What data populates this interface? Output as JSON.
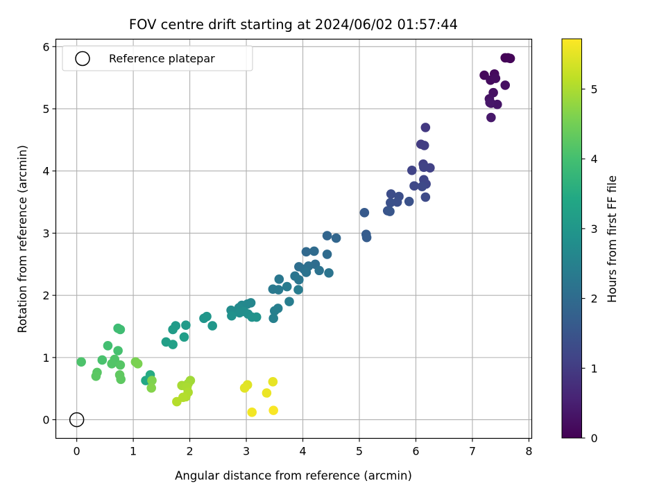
{
  "chart_data": {
    "type": "scatter",
    "title": "FOV centre drift starting at 2024/06/02 01:57:44",
    "xlabel": "Angular distance from reference (arcmin)",
    "ylabel": "Rotation from reference (arcmin)",
    "xlim": [
      -0.37,
      8.05
    ],
    "ylim": [
      -0.3,
      6.12
    ],
    "xticks": [
      "0",
      "1",
      "2",
      "3",
      "4",
      "5",
      "6",
      "7",
      "8"
    ],
    "yticks": [
      "0",
      "1",
      "2",
      "3",
      "4",
      "5",
      "6"
    ],
    "grid": true,
    "legend": {
      "position": "top-left",
      "entries": [
        "Reference platepar"
      ]
    },
    "reference_point": {
      "x": 0,
      "y": 0
    },
    "colorbar": {
      "label": "Hours from first FF file",
      "colormap": "viridis",
      "range": [
        0,
        5.72
      ],
      "ticks": [
        "0",
        "1",
        "2",
        "3",
        "4",
        "5"
      ]
    },
    "points": [
      {
        "x": 7.63,
        "y": 5.82,
        "t": 0.03
      },
      {
        "x": 7.58,
        "y": 5.82,
        "t": 0.05
      },
      {
        "x": 7.67,
        "y": 5.81,
        "t": 0.07
      },
      {
        "x": 7.21,
        "y": 5.54,
        "t": 0.12
      },
      {
        "x": 7.39,
        "y": 5.56,
        "t": 0.14
      },
      {
        "x": 7.32,
        "y": 5.46,
        "t": 0.17
      },
      {
        "x": 7.41,
        "y": 5.49,
        "t": 0.19
      },
      {
        "x": 7.58,
        "y": 5.38,
        "t": 0.22
      },
      {
        "x": 7.37,
        "y": 5.26,
        "t": 0.25
      },
      {
        "x": 7.3,
        "y": 5.16,
        "t": 0.28
      },
      {
        "x": 7.33,
        "y": 5.09,
        "t": 0.3
      },
      {
        "x": 7.44,
        "y": 5.07,
        "t": 0.33
      },
      {
        "x": 7.31,
        "y": 5.1,
        "t": 0.36
      },
      {
        "x": 7.33,
        "y": 4.86,
        "t": 0.38
      },
      {
        "x": 6.17,
        "y": 4.7,
        "t": 0.95
      },
      {
        "x": 6.09,
        "y": 4.43,
        "t": 1.0
      },
      {
        "x": 6.15,
        "y": 4.41,
        "t": 1.03
      },
      {
        "x": 6.13,
        "y": 4.11,
        "t": 1.07
      },
      {
        "x": 6.25,
        "y": 4.05,
        "t": 1.1
      },
      {
        "x": 6.14,
        "y": 4.06,
        "t": 1.12
      },
      {
        "x": 5.93,
        "y": 4.01,
        "t": 1.15
      },
      {
        "x": 6.14,
        "y": 3.86,
        "t": 1.18
      },
      {
        "x": 6.18,
        "y": 3.79,
        "t": 1.21
      },
      {
        "x": 5.97,
        "y": 3.76,
        "t": 1.24
      },
      {
        "x": 6.11,
        "y": 3.75,
        "t": 1.27
      },
      {
        "x": 6.17,
        "y": 3.58,
        "t": 1.3
      },
      {
        "x": 5.56,
        "y": 3.63,
        "t": 1.33
      },
      {
        "x": 5.7,
        "y": 3.59,
        "t": 1.36
      },
      {
        "x": 5.67,
        "y": 3.5,
        "t": 1.39
      },
      {
        "x": 5.55,
        "y": 3.49,
        "t": 1.42
      },
      {
        "x": 5.88,
        "y": 3.51,
        "t": 1.45
      },
      {
        "x": 5.5,
        "y": 3.36,
        "t": 1.48
      },
      {
        "x": 5.54,
        "y": 3.35,
        "t": 1.52
      },
      {
        "x": 5.09,
        "y": 3.33,
        "t": 1.6
      },
      {
        "x": 5.12,
        "y": 2.98,
        "t": 1.65
      },
      {
        "x": 5.13,
        "y": 2.93,
        "t": 1.68
      },
      {
        "x": 4.43,
        "y": 2.96,
        "t": 1.85
      },
      {
        "x": 4.59,
        "y": 2.92,
        "t": 1.88
      },
      {
        "x": 4.06,
        "y": 2.7,
        "t": 1.95
      },
      {
        "x": 4.2,
        "y": 2.71,
        "t": 1.98
      },
      {
        "x": 4.43,
        "y": 2.66,
        "t": 2.0
      },
      {
        "x": 4.22,
        "y": 2.5,
        "t": 2.03
      },
      {
        "x": 3.93,
        "y": 2.46,
        "t": 2.06
      },
      {
        "x": 4.1,
        "y": 2.47,
        "t": 2.08
      },
      {
        "x": 4.02,
        "y": 2.42,
        "t": 2.11
      },
      {
        "x": 4.29,
        "y": 2.4,
        "t": 2.14
      },
      {
        "x": 4.06,
        "y": 2.37,
        "t": 2.17
      },
      {
        "x": 4.46,
        "y": 2.36,
        "t": 2.2
      },
      {
        "x": 3.86,
        "y": 2.31,
        "t": 2.22
      },
      {
        "x": 3.93,
        "y": 2.25,
        "t": 2.25
      },
      {
        "x": 3.58,
        "y": 2.26,
        "t": 2.27
      },
      {
        "x": 3.47,
        "y": 2.1,
        "t": 2.3
      },
      {
        "x": 3.57,
        "y": 2.09,
        "t": 2.32
      },
      {
        "x": 3.72,
        "y": 2.14,
        "t": 2.35
      },
      {
        "x": 3.92,
        "y": 2.09,
        "t": 2.37
      },
      {
        "x": 3.76,
        "y": 1.9,
        "t": 2.4
      },
      {
        "x": 3.56,
        "y": 1.79,
        "t": 2.43
      },
      {
        "x": 3.5,
        "y": 1.75,
        "t": 2.45
      },
      {
        "x": 3.48,
        "y": 1.63,
        "t": 2.48
      },
      {
        "x": 3.08,
        "y": 1.88,
        "t": 2.6
      },
      {
        "x": 3.02,
        "y": 1.86,
        "t": 2.63
      },
      {
        "x": 2.92,
        "y": 1.84,
        "t": 2.66
      },
      {
        "x": 2.87,
        "y": 1.8,
        "t": 2.69
      },
      {
        "x": 2.85,
        "y": 1.75,
        "t": 2.72
      },
      {
        "x": 2.73,
        "y": 1.76,
        "t": 2.75
      },
      {
        "x": 2.96,
        "y": 1.74,
        "t": 2.78
      },
      {
        "x": 2.88,
        "y": 1.72,
        "t": 2.8
      },
      {
        "x": 3.03,
        "y": 1.7,
        "t": 2.83
      },
      {
        "x": 2.74,
        "y": 1.67,
        "t": 2.86
      },
      {
        "x": 3.1,
        "y": 1.65,
        "t": 2.89
      },
      {
        "x": 3.18,
        "y": 1.65,
        "t": 2.92
      },
      {
        "x": 2.25,
        "y": 1.63,
        "t": 2.95
      },
      {
        "x": 2.3,
        "y": 1.66,
        "t": 2.98
      },
      {
        "x": 2.4,
        "y": 1.51,
        "t": 3.02
      },
      {
        "x": 1.93,
        "y": 1.52,
        "t": 3.08
      },
      {
        "x": 1.75,
        "y": 1.51,
        "t": 3.11
      },
      {
        "x": 1.7,
        "y": 1.45,
        "t": 3.14
      },
      {
        "x": 1.9,
        "y": 1.33,
        "t": 3.18
      },
      {
        "x": 1.58,
        "y": 1.25,
        "t": 3.22
      },
      {
        "x": 1.7,
        "y": 1.21,
        "t": 3.25
      },
      {
        "x": 1.22,
        "y": 0.63,
        "t": 3.4
      },
      {
        "x": 1.3,
        "y": 0.72,
        "t": 3.5
      },
      {
        "x": 0.73,
        "y": 1.47,
        "t": 3.9
      },
      {
        "x": 0.77,
        "y": 1.45,
        "t": 3.93
      },
      {
        "x": 0.55,
        "y": 1.19,
        "t": 3.98
      },
      {
        "x": 0.73,
        "y": 1.11,
        "t": 4.02
      },
      {
        "x": 0.45,
        "y": 0.96,
        "t": 4.06
      },
      {
        "x": 0.08,
        "y": 0.93,
        "t": 4.1
      },
      {
        "x": 0.67,
        "y": 0.97,
        "t": 4.13
      },
      {
        "x": 0.62,
        "y": 0.9,
        "t": 4.16
      },
      {
        "x": 0.77,
        "y": 0.88,
        "t": 4.19
      },
      {
        "x": 0.36,
        "y": 0.76,
        "t": 4.22
      },
      {
        "x": 0.34,
        "y": 0.7,
        "t": 4.25
      },
      {
        "x": 0.78,
        "y": 0.65,
        "t": 4.28
      },
      {
        "x": 0.76,
        "y": 0.72,
        "t": 4.3
      },
      {
        "x": 1.04,
        "y": 0.93,
        "t": 4.55
      },
      {
        "x": 1.08,
        "y": 0.9,
        "t": 4.58
      },
      {
        "x": 1.33,
        "y": 0.63,
        "t": 4.62
      },
      {
        "x": 1.32,
        "y": 0.51,
        "t": 4.66
      },
      {
        "x": 2.01,
        "y": 0.63,
        "t": 4.9
      },
      {
        "x": 1.97,
        "y": 0.58,
        "t": 4.93
      },
      {
        "x": 1.86,
        "y": 0.55,
        "t": 4.96
      },
      {
        "x": 1.95,
        "y": 0.52,
        "t": 4.99
      },
      {
        "x": 1.97,
        "y": 0.44,
        "t": 5.02
      },
      {
        "x": 1.93,
        "y": 0.37,
        "t": 5.04
      },
      {
        "x": 1.88,
        "y": 0.36,
        "t": 5.06
      },
      {
        "x": 1.77,
        "y": 0.29,
        "t": 5.08
      },
      {
        "x": 3.02,
        "y": 0.56,
        "t": 5.45
      },
      {
        "x": 2.97,
        "y": 0.51,
        "t": 5.48
      },
      {
        "x": 3.47,
        "y": 0.61,
        "t": 5.52
      },
      {
        "x": 3.36,
        "y": 0.43,
        "t": 5.56
      },
      {
        "x": 3.1,
        "y": 0.12,
        "t": 5.62
      },
      {
        "x": 3.48,
        "y": 0.15,
        "t": 5.68
      }
    ]
  }
}
